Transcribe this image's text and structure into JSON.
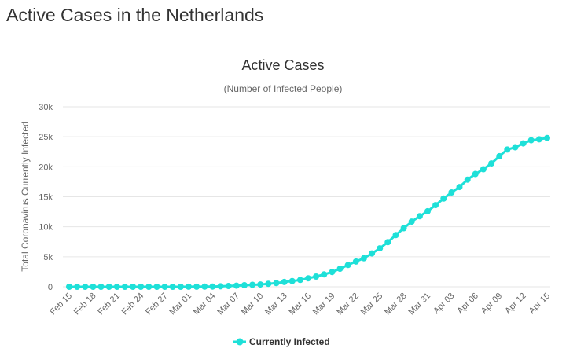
{
  "page": {
    "title": "Active Cases in the Netherlands"
  },
  "chart_data": {
    "type": "line",
    "title": "Active Cases",
    "subtitle": "(Number of Infected People)",
    "xlabel": "",
    "ylabel": "Total Coronavirus Currently Infected",
    "ylim": [
      0,
      30000
    ],
    "y_ticks": [
      0,
      5000,
      10000,
      15000,
      20000,
      25000,
      30000
    ],
    "y_tick_labels": [
      "0",
      "5k",
      "10k",
      "15k",
      "20k",
      "25k",
      "30k"
    ],
    "x_tick_labels": [
      "Feb 15",
      "Feb 18",
      "Feb 21",
      "Feb 24",
      "Feb 27",
      "Mar 01",
      "Mar 04",
      "Mar 07",
      "Mar 10",
      "Mar 13",
      "Mar 16",
      "Mar 19",
      "Mar 22",
      "Mar 25",
      "Mar 28",
      "Mar 31",
      "Apr 03",
      "Apr 06",
      "Apr 09",
      "Apr 12",
      "Apr 15"
    ],
    "grid": true,
    "legend_position": "bottom-center",
    "color": "#1ee0d8",
    "categories": [
      "Feb 15",
      "Feb 16",
      "Feb 17",
      "Feb 18",
      "Feb 19",
      "Feb 20",
      "Feb 21",
      "Feb 22",
      "Feb 23",
      "Feb 24",
      "Feb 25",
      "Feb 26",
      "Feb 27",
      "Feb 28",
      "Feb 29",
      "Mar 01",
      "Mar 02",
      "Mar 03",
      "Mar 04",
      "Mar 05",
      "Mar 06",
      "Mar 07",
      "Mar 08",
      "Mar 09",
      "Mar 10",
      "Mar 11",
      "Mar 12",
      "Mar 13",
      "Mar 14",
      "Mar 15",
      "Mar 16",
      "Mar 17",
      "Mar 18",
      "Mar 19",
      "Mar 20",
      "Mar 21",
      "Mar 22",
      "Mar 23",
      "Mar 24",
      "Mar 25",
      "Mar 26",
      "Mar 27",
      "Mar 28",
      "Mar 29",
      "Mar 30",
      "Mar 31",
      "Apr 01",
      "Apr 02",
      "Apr 03",
      "Apr 04",
      "Apr 05",
      "Apr 06",
      "Apr 07",
      "Apr 08",
      "Apr 09",
      "Apr 10",
      "Apr 11",
      "Apr 12",
      "Apr 13",
      "Apr 14",
      "Apr 15"
    ],
    "series": [
      {
        "name": "Currently Infected",
        "values": [
          0,
          0,
          0,
          0,
          0,
          0,
          0,
          0,
          0,
          0,
          0,
          0,
          1,
          1,
          6,
          10,
          18,
          24,
          38,
          82,
          128,
          188,
          265,
          321,
          382,
          503,
          614,
          804,
          959,
          1135,
          1413,
          1705,
          2051,
          2460,
          2994,
          3631,
          4204,
          4749,
          5560,
          6412,
          7431,
          8603,
          9762,
          10866,
          11750,
          12595,
          13614,
          14697,
          15723,
          16627,
          17851,
          18803,
          19580,
          20549,
          21762,
          22871,
          23249,
          23900,
          24413,
          24571,
          24800
        ]
      }
    ]
  }
}
